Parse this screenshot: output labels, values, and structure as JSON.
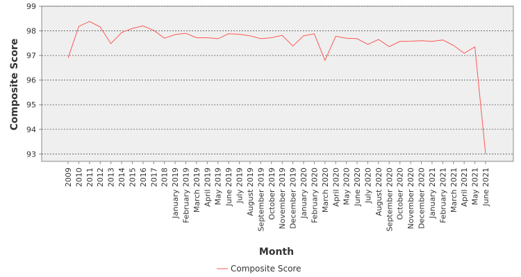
{
  "chart_data": {
    "type": "line",
    "xlabel": "Month",
    "ylabel": "Composite Score",
    "ylim": [
      92.7,
      99.0
    ],
    "yticks": [
      93,
      94,
      95,
      96,
      97,
      98,
      99
    ],
    "grid": true,
    "legend_placement": "bottom-center",
    "categories": [
      "2009",
      "2010",
      "2011",
      "2012",
      "2013",
      "2014",
      "2015",
      "2016",
      "2017",
      "2018",
      "January 2019",
      "February 2019",
      "March 2019",
      "April 2019",
      "May 2019",
      "June 2019",
      "July 2019",
      "August 2019",
      "September 2019",
      "October 2019",
      "November 2019",
      "December 2019",
      "January 2020",
      "February 2020",
      "March 2020",
      "April 2020",
      "May 2020",
      "June 2020",
      "July 2020",
      "August 2020",
      "September 2020",
      "October 2020",
      "November 2020",
      "December 2020",
      "January 2021",
      "February 2021",
      "March 2021",
      "April 2021",
      "May 2021",
      "June 2021"
    ],
    "series": [
      {
        "name": "Composite Score",
        "color": "#ff5555",
        "values": [
          96.9,
          98.18,
          98.38,
          98.16,
          97.48,
          97.93,
          98.1,
          98.2,
          98.02,
          97.7,
          97.85,
          97.9,
          97.72,
          97.72,
          97.68,
          97.88,
          97.86,
          97.8,
          97.68,
          97.72,
          97.82,
          97.38,
          97.8,
          97.88,
          96.8,
          97.78,
          97.7,
          97.68,
          97.45,
          97.65,
          97.36,
          97.57,
          97.58,
          97.6,
          97.57,
          97.63,
          97.41,
          97.09,
          97.35,
          93.0
        ]
      }
    ]
  }
}
